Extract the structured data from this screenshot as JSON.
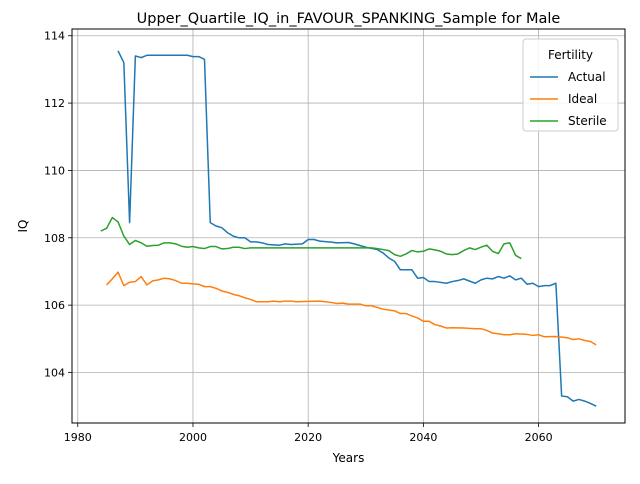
{
  "chart_data": {
    "type": "line",
    "title": "Upper_Quartile_IQ_in_FAVOUR_SPANKING_Sample for Male",
    "xlabel": "Years",
    "ylabel": "IQ",
    "xlim": [
      1979,
      2075
    ],
    "ylim": [
      102.5,
      114.2
    ],
    "xticks": [
      1980,
      2000,
      2020,
      2040,
      2060
    ],
    "yticks": [
      104,
      106,
      108,
      110,
      112,
      114
    ],
    "grid": true,
    "legend": {
      "title": "Fertility",
      "placement": "top-right"
    },
    "series": [
      {
        "name": "Actual",
        "color": "#1f77b4",
        "points": [
          [
            1987,
            113.55
          ],
          [
            1988,
            113.2
          ],
          [
            1989,
            108.45
          ],
          [
            1990,
            113.4
          ],
          [
            1991,
            113.35
          ],
          [
            1992,
            113.42
          ],
          [
            1994,
            113.42
          ],
          [
            1996,
            113.42
          ],
          [
            1998,
            113.42
          ],
          [
            1999,
            113.42
          ],
          [
            2000,
            113.38
          ],
          [
            2001,
            113.38
          ],
          [
            2002,
            113.3
          ],
          [
            2003,
            108.45
          ],
          [
            2004,
            108.35
          ],
          [
            2005,
            108.3
          ],
          [
            2006,
            108.15
          ],
          [
            2007,
            108.05
          ],
          [
            2008,
            108.0
          ],
          [
            2009,
            108.0
          ],
          [
            2010,
            107.88
          ],
          [
            2011,
            107.88
          ],
          [
            2012,
            107.85
          ],
          [
            2013,
            107.8
          ],
          [
            2015,
            107.78
          ],
          [
            2016,
            107.82
          ],
          [
            2017,
            107.8
          ],
          [
            2019,
            107.82
          ],
          [
            2020,
            107.95
          ],
          [
            2021,
            107.95
          ],
          [
            2022,
            107.9
          ],
          [
            2024,
            107.87
          ],
          [
            2025,
            107.85
          ],
          [
            2027,
            107.86
          ],
          [
            2028,
            107.82
          ],
          [
            2030,
            107.72
          ],
          [
            2032,
            107.65
          ],
          [
            2033,
            107.55
          ],
          [
            2034,
            107.4
          ],
          [
            2035,
            107.3
          ],
          [
            2036,
            107.05
          ],
          [
            2038,
            107.05
          ],
          [
            2039,
            106.8
          ],
          [
            2040,
            106.82
          ],
          [
            2041,
            106.7
          ],
          [
            2042,
            106.7
          ],
          [
            2044,
            106.65
          ],
          [
            2045,
            106.7
          ],
          [
            2046,
            106.73
          ],
          [
            2047,
            106.78
          ],
          [
            2049,
            106.65
          ],
          [
            2050,
            106.75
          ],
          [
            2051,
            106.8
          ],
          [
            2052,
            106.78
          ],
          [
            2053,
            106.85
          ],
          [
            2054,
            106.8
          ],
          [
            2055,
            106.87
          ],
          [
            2056,
            106.75
          ],
          [
            2057,
            106.8
          ],
          [
            2058,
            106.62
          ],
          [
            2059,
            106.65
          ],
          [
            2060,
            106.55
          ],
          [
            2061,
            106.58
          ],
          [
            2062,
            106.58
          ],
          [
            2063,
            106.65
          ],
          [
            2064,
            103.3
          ],
          [
            2065,
            103.28
          ],
          [
            2066,
            103.15
          ],
          [
            2067,
            103.2
          ],
          [
            2068,
            103.15
          ],
          [
            2069,
            103.08
          ],
          [
            2070,
            103.0
          ]
        ]
      },
      {
        "name": "Ideal",
        "color": "#ff7f0e",
        "points": [
          [
            1985,
            106.6
          ],
          [
            1986,
            106.78
          ],
          [
            1987,
            106.98
          ],
          [
            1988,
            106.58
          ],
          [
            1989,
            106.68
          ],
          [
            1990,
            106.7
          ],
          [
            1991,
            106.85
          ],
          [
            1992,
            106.6
          ],
          [
            1993,
            106.72
          ],
          [
            1994,
            106.75
          ],
          [
            1995,
            106.8
          ],
          [
            1996,
            106.78
          ],
          [
            1997,
            106.73
          ],
          [
            1998,
            106.65
          ],
          [
            1999,
            106.65
          ],
          [
            2000,
            106.63
          ],
          [
            2001,
            106.62
          ],
          [
            2002,
            106.55
          ],
          [
            2003,
            106.55
          ],
          [
            2004,
            106.5
          ],
          [
            2005,
            106.42
          ],
          [
            2006,
            106.38
          ],
          [
            2007,
            106.32
          ],
          [
            2008,
            106.28
          ],
          [
            2009,
            106.22
          ],
          [
            2010,
            106.17
          ],
          [
            2011,
            106.1
          ],
          [
            2013,
            106.1
          ],
          [
            2014,
            106.12
          ],
          [
            2015,
            106.1
          ],
          [
            2016,
            106.12
          ],
          [
            2017,
            106.12
          ],
          [
            2018,
            106.1
          ],
          [
            2020,
            106.11
          ],
          [
            2022,
            106.12
          ],
          [
            2024,
            106.08
          ],
          [
            2025,
            106.05
          ],
          [
            2026,
            106.06
          ],
          [
            2027,
            106.03
          ],
          [
            2029,
            106.03
          ],
          [
            2030,
            105.98
          ],
          [
            2031,
            105.98
          ],
          [
            2032,
            105.93
          ],
          [
            2033,
            105.88
          ],
          [
            2035,
            105.83
          ],
          [
            2036,
            105.75
          ],
          [
            2037,
            105.75
          ],
          [
            2038,
            105.68
          ],
          [
            2039,
            105.62
          ],
          [
            2040,
            105.52
          ],
          [
            2041,
            105.52
          ],
          [
            2042,
            105.42
          ],
          [
            2043,
            105.38
          ],
          [
            2044,
            105.32
          ],
          [
            2045,
            105.33
          ],
          [
            2047,
            105.32
          ],
          [
            2049,
            105.3
          ],
          [
            2050,
            105.3
          ],
          [
            2051,
            105.25
          ],
          [
            2052,
            105.17
          ],
          [
            2053,
            105.15
          ],
          [
            2054,
            105.12
          ],
          [
            2055,
            105.12
          ],
          [
            2056,
            105.15
          ],
          [
            2058,
            105.13
          ],
          [
            2059,
            105.1
          ],
          [
            2060,
            105.12
          ],
          [
            2061,
            105.06
          ],
          [
            2063,
            105.07
          ],
          [
            2064,
            105.05
          ],
          [
            2065,
            105.03
          ],
          [
            2066,
            104.98
          ],
          [
            2067,
            105.0
          ],
          [
            2068,
            104.95
          ],
          [
            2069,
            104.92
          ],
          [
            2070,
            104.82
          ]
        ]
      },
      {
        "name": "Sterile",
        "color": "#2ca02c",
        "points": [
          [
            1984,
            108.2
          ],
          [
            1985,
            108.28
          ],
          [
            1986,
            108.6
          ],
          [
            1987,
            108.47
          ],
          [
            1988,
            108.05
          ],
          [
            1989,
            107.8
          ],
          [
            1990,
            107.92
          ],
          [
            1991,
            107.85
          ],
          [
            1992,
            107.75
          ],
          [
            1993,
            107.77
          ],
          [
            1994,
            107.78
          ],
          [
            1995,
            107.85
          ],
          [
            1996,
            107.85
          ],
          [
            1997,
            107.82
          ],
          [
            1998,
            107.75
          ],
          [
            1999,
            107.72
          ],
          [
            2000,
            107.74
          ],
          [
            2001,
            107.7
          ],
          [
            2002,
            107.68
          ],
          [
            2003,
            107.74
          ],
          [
            2004,
            107.74
          ],
          [
            2005,
            107.67
          ],
          [
            2006,
            107.68
          ],
          [
            2007,
            107.72
          ],
          [
            2008,
            107.72
          ],
          [
            2009,
            107.68
          ],
          [
            2010,
            107.7
          ],
          [
            2012,
            107.7
          ],
          [
            2015,
            107.7
          ],
          [
            2020,
            107.7
          ],
          [
            2025,
            107.7
          ],
          [
            2030,
            107.7
          ],
          [
            2031,
            107.7
          ],
          [
            2032,
            107.68
          ],
          [
            2033,
            107.65
          ],
          [
            2034,
            107.62
          ],
          [
            2035,
            107.5
          ],
          [
            2036,
            107.45
          ],
          [
            2037,
            107.52
          ],
          [
            2038,
            107.62
          ],
          [
            2039,
            107.58
          ],
          [
            2040,
            107.6
          ],
          [
            2041,
            107.67
          ],
          [
            2042,
            107.64
          ],
          [
            2043,
            107.6
          ],
          [
            2044,
            107.52
          ],
          [
            2045,
            107.5
          ],
          [
            2046,
            107.52
          ],
          [
            2047,
            107.62
          ],
          [
            2048,
            107.7
          ],
          [
            2049,
            107.65
          ],
          [
            2050,
            107.72
          ],
          [
            2051,
            107.78
          ],
          [
            2052,
            107.6
          ],
          [
            2053,
            107.53
          ],
          [
            2054,
            107.82
          ],
          [
            2055,
            107.85
          ],
          [
            2056,
            107.48
          ],
          [
            2057,
            107.38
          ]
        ]
      }
    ]
  }
}
